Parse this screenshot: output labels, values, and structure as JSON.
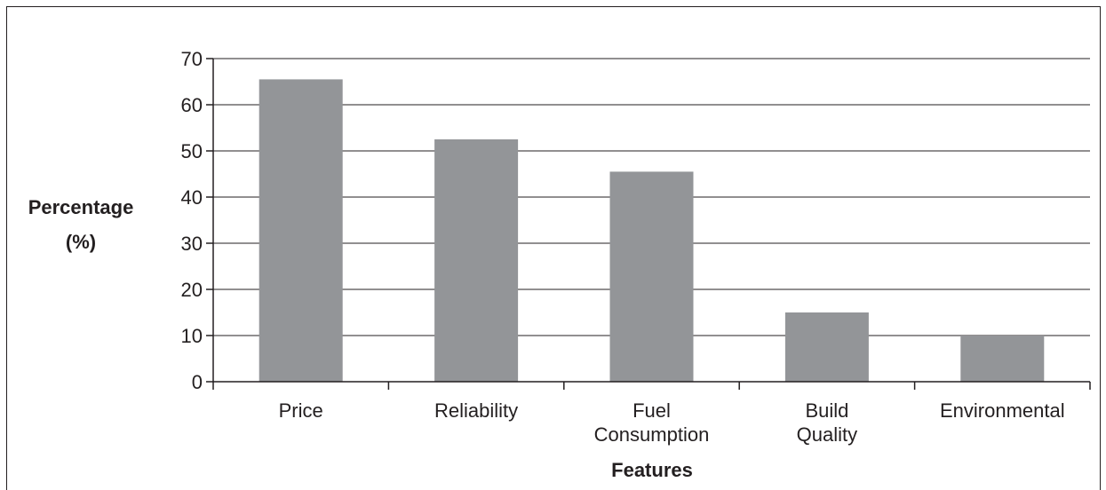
{
  "chart_data": {
    "type": "bar",
    "categories": [
      [
        "Price"
      ],
      [
        "Reliability"
      ],
      [
        "Fuel",
        "Consumption"
      ],
      [
        "Build",
        "Quality"
      ],
      [
        "Environmental"
      ]
    ],
    "values": [
      65.5,
      52.5,
      45.5,
      15,
      10
    ],
    "xlabel": "Features",
    "ylabel": [
      "Percentage",
      "(%)"
    ],
    "ylim": [
      0,
      70
    ],
    "yticks": [
      "0",
      "10",
      "20",
      "30",
      "40",
      "50",
      "60",
      "70"
    ],
    "grid": true,
    "bar_color": "#939598",
    "axis_color": "#231f20"
  }
}
